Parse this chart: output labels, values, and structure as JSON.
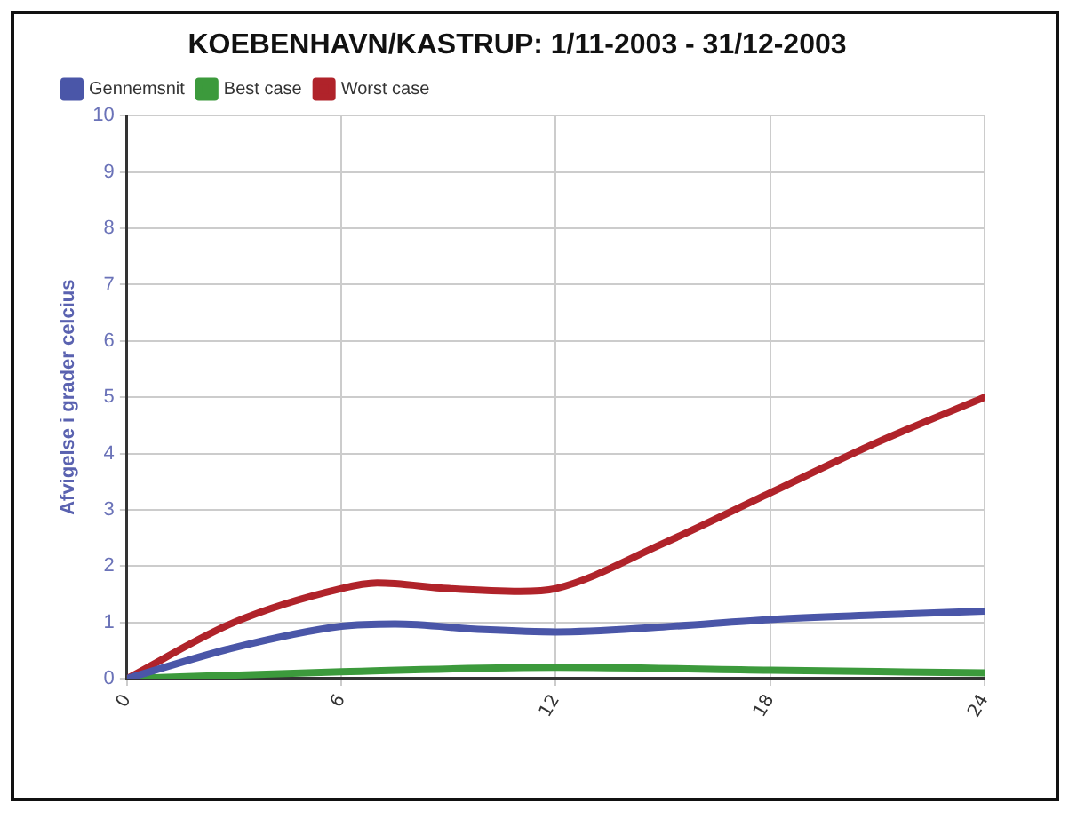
{
  "chart_data": {
    "type": "line",
    "title": "KOEBENHAVN/KASTRUP: 1/11-2003 - 31/12-2003",
    "ylabel": "Afvigelse i grader celcius",
    "xlim": [
      0,
      24
    ],
    "xticks": [
      0,
      6,
      12,
      18,
      24
    ],
    "ylim": [
      0,
      10
    ],
    "yticks": [
      0,
      1,
      2,
      3,
      4,
      5,
      6,
      7,
      8,
      9,
      10
    ],
    "grid": true,
    "legend": "top left",
    "marker": "none",
    "line_style": "solid",
    "series": [
      {
        "name": "Gennemsnit",
        "color": "#4a56a8",
        "x": [
          0,
          3,
          6,
          7.5,
          10,
          12,
          15,
          18,
          21,
          24
        ],
        "values": [
          0,
          0.55,
          0.93,
          0.97,
          0.87,
          0.83,
          0.92,
          1.05,
          1.13,
          1.2
        ]
      },
      {
        "name": "Best case",
        "color": "#3c9a3c",
        "x": [
          0,
          6,
          12,
          18,
          24
        ],
        "values": [
          0,
          0.12,
          0.2,
          0.15,
          0.1
        ]
      },
      {
        "name": "Worst case",
        "color": "#b0232a",
        "x": [
          0,
          3,
          6,
          7,
          9,
          11,
          12,
          15,
          18,
          21,
          24
        ],
        "values": [
          0,
          1.0,
          1.6,
          1.7,
          1.6,
          1.55,
          1.6,
          2.4,
          3.3,
          4.2,
          5.0
        ]
      }
    ]
  }
}
